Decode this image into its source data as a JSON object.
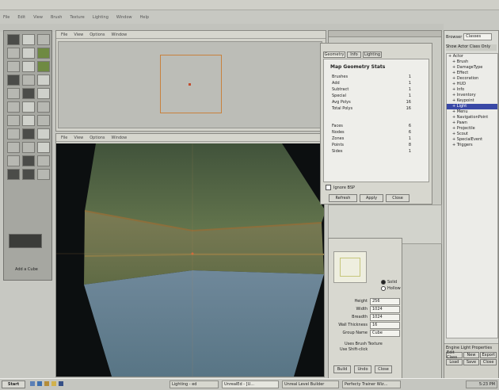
{
  "app": {
    "menu": [
      "File",
      "Edit",
      "View",
      "Brush",
      "Texture",
      "Lighting",
      "Window",
      "Help"
    ]
  },
  "tool_palette": {
    "label": "Add a Cube"
  },
  "top_viewport": {
    "menu": [
      "File",
      "View",
      "Options",
      "Window"
    ]
  },
  "view3d": {
    "menu": [
      "File",
      "View",
      "Options",
      "Window"
    ]
  },
  "stats_window": {
    "tabs": [
      "Geometry",
      "Info",
      "Lighting"
    ],
    "title": "Map Geometry Stats",
    "rows": [
      {
        "label": "Brushes",
        "value": "1"
      },
      {
        "label": "Add",
        "value": "1"
      },
      {
        "label": "Subtract",
        "value": "1"
      },
      {
        "label": "Special",
        "value": "1"
      },
      {
        "label": "Avg Polys",
        "value": "16"
      },
      {
        "label": "Total Polys",
        "value": "16"
      }
    ],
    "rows2": [
      {
        "label": "Faces",
        "value": "6"
      },
      {
        "label": "Nodes",
        "value": "6"
      },
      {
        "label": "Zones",
        "value": "1"
      },
      {
        "label": "Points",
        "value": "8"
      },
      {
        "label": "Sides",
        "value": "1"
      }
    ],
    "checkbox_label": "Ignore BSP",
    "buttons": [
      "Refresh",
      "Apply",
      "Close"
    ]
  },
  "cube_builder": {
    "checkbox_labels": [
      "Solid",
      "Hollow"
    ],
    "fields": [
      {
        "label": "Height",
        "value": "256"
      },
      {
        "label": "Width",
        "value": "1024"
      },
      {
        "label": "Breadth",
        "value": "1024"
      },
      {
        "label": "Wall Thickness",
        "value": "16"
      },
      {
        "label": "Group Name",
        "value": "Cube"
      }
    ],
    "info_lines": [
      "Uses Brush Texture",
      "Use Shift-click"
    ],
    "buttons": [
      "Build",
      "Undo",
      "Close"
    ]
  },
  "browser": {
    "header_label": "Browser",
    "dropdown_value": "Classes",
    "toolbar_label": "Show Actor Class Only",
    "tree": [
      {
        "label": "Actor",
        "level": 0,
        "selected": false
      },
      {
        "label": "Brush",
        "level": 1,
        "selected": false
      },
      {
        "label": "DamageType",
        "level": 1,
        "selected": false
      },
      {
        "label": "Effect",
        "level": 1,
        "selected": false
      },
      {
        "label": "Decoration",
        "level": 1,
        "selected": false
      },
      {
        "label": "HUD",
        "level": 1,
        "selected": false
      },
      {
        "label": "Info",
        "level": 1,
        "selected": false
      },
      {
        "label": "Inventory",
        "level": 1,
        "selected": false
      },
      {
        "label": "Keypoint",
        "level": 1,
        "selected": false
      },
      {
        "label": "Light",
        "level": 1,
        "selected": true
      },
      {
        "label": "Menu",
        "level": 1,
        "selected": false
      },
      {
        "label": "NavigationPoint",
        "level": 1,
        "selected": false
      },
      {
        "label": "Pawn",
        "level": 1,
        "selected": false
      },
      {
        "label": "Projectile",
        "level": 1,
        "selected": false
      },
      {
        "label": "Scout",
        "level": 1,
        "selected": false
      },
      {
        "label": "SpecialEvent",
        "level": 1,
        "selected": false
      },
      {
        "label": "Triggers",
        "level": 1,
        "selected": false
      }
    ],
    "bottom_panel": {
      "title": "Engine Light Properties",
      "cells": [
        "Edit Class",
        "New",
        "Export",
        "Load",
        "Save",
        "Close"
      ]
    }
  },
  "taskbar": {
    "start_label": "Start",
    "tasks": [
      "Lighting - ed",
      "UnrealEd - [U...",
      "Unreal Level Builder",
      "Perfecty Trainer Wiz..."
    ],
    "clock": "5:23 PM"
  }
}
